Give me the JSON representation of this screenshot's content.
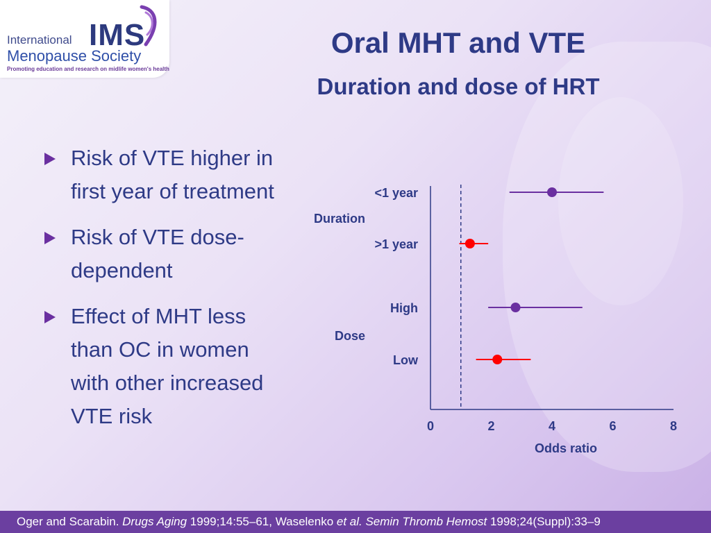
{
  "logo": {
    "line1": "International",
    "ims": "IMS",
    "line2": "Menopause Society",
    "tagline": "Promoting education and research on midlife women's health"
  },
  "title": "Oral MHT and VTE",
  "subtitle": "Duration and dose of HRT",
  "bullets": [
    "Risk of VTE higher in first year of treatment",
    "Risk of VTE dose-dependent",
    "Effect of MHT less than OC in women with other increased VTE risk"
  ],
  "footer": {
    "ref1_authors": "Oger and Scarabin. ",
    "ref1_journal": "Drugs Aging",
    "ref1_details": " 1999;14:55–61,  Waselenko ",
    "ref2_etal": "et al. Semin Thromb Hemost",
    "ref2_details": " 1998;24(Suppl):33–9"
  },
  "colors": {
    "accent_purple": "#6a2fa0",
    "accent_red": "#ff0000",
    "title_blue": "#2e3a86",
    "footer_bg": "#6b3fa0"
  },
  "chart_data": {
    "type": "forest",
    "xlabel": "Odds ratio",
    "xlim": [
      0,
      8
    ],
    "xticks": [
      0,
      2,
      4,
      6,
      8
    ],
    "reference_line": 1,
    "groups": [
      {
        "label": "Duration",
        "rows": [
          {
            "label": "<1 year",
            "estimate": 4.0,
            "ci": [
              2.6,
              5.7
            ],
            "color": "#6a2fa0"
          },
          {
            "label": ">1 year",
            "estimate": 1.3,
            "ci": [
              0.95,
              1.9
            ],
            "color": "#ff0000"
          }
        ]
      },
      {
        "label": "Dose",
        "rows": [
          {
            "label": "High",
            "estimate": 2.8,
            "ci": [
              1.9,
              5.0
            ],
            "color": "#6a2fa0"
          },
          {
            "label": "Low",
            "estimate": 2.2,
            "ci": [
              1.5,
              3.3
            ],
            "color": "#ff0000"
          }
        ]
      }
    ]
  }
}
